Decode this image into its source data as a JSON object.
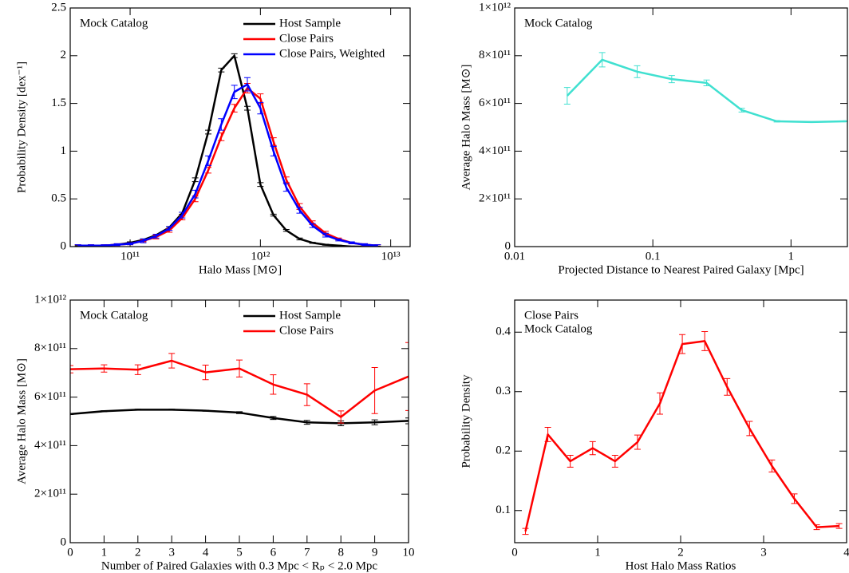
{
  "chart_data": [
    {
      "type": "line",
      "xscale": "log",
      "annotations": [
        "Mock Catalog"
      ],
      "xlabel": "Halo Mass [M⊙]",
      "ylabel": "Probability Density [dex⁻¹]",
      "x": [
        39800000000.0,
        50100000000.0,
        63100000000.0,
        79400000000.0,
        100000000000.0,
        126000000000.0,
        158000000000.0,
        200000000000.0,
        251000000000.0,
        316000000000.0,
        398000000000.0,
        501000000000.0,
        631000000000.0,
        794000000000.0,
        1000000000000.0,
        1260000000000.0,
        1580000000000.0,
        2000000000000.0,
        2510000000000.0,
        3160000000000.0,
        3980000000000.0,
        5010000000000.0,
        6310000000000.0,
        7940000000000.0
      ],
      "xlim": [
        34700000000.0,
        14100000000000.0
      ],
      "xticks": [
        {
          "value": 100000000000.0,
          "label": "10¹¹"
        },
        {
          "value": 1000000000000.0,
          "label": "10¹²"
        },
        {
          "value": 10000000000000.0,
          "label": "10¹³"
        }
      ],
      "ylim": [
        0,
        2.5
      ],
      "yticks": [
        0,
        0.5,
        1,
        1.5,
        2,
        2.5
      ],
      "legend": "upper right",
      "series": [
        {
          "name": "Host Sample",
          "color": "#000000",
          "values": [
            0.01,
            0.01,
            0.01,
            0.02,
            0.04,
            0.07,
            0.12,
            0.2,
            0.35,
            0.7,
            1.2,
            1.85,
            2.0,
            1.45,
            0.65,
            0.33,
            0.17,
            0.08,
            0.04,
            0.02,
            0.01,
            0.0,
            0.0,
            0.0
          ],
          "errors": [
            0.005,
            0.005,
            0.005,
            0.005,
            0.01,
            0.01,
            0.01,
            0.01,
            0.01,
            0.02,
            0.02,
            0.02,
            0.02,
            0.02,
            0.02,
            0.01,
            0.01,
            0.01,
            0.005,
            0.005,
            0.005,
            0.005,
            0.005,
            0.005
          ]
        },
        {
          "name": "Close Pairs",
          "color": "#ff0000",
          "values": [
            0.01,
            0.01,
            0.01,
            0.02,
            0.03,
            0.06,
            0.1,
            0.17,
            0.3,
            0.5,
            0.8,
            1.15,
            1.45,
            1.66,
            1.55,
            1.1,
            0.7,
            0.42,
            0.25,
            0.14,
            0.08,
            0.04,
            0.02,
            0.01
          ],
          "errors": [
            0.01,
            0.01,
            0.01,
            0.01,
            0.01,
            0.01,
            0.02,
            0.02,
            0.02,
            0.03,
            0.03,
            0.04,
            0.04,
            0.05,
            0.05,
            0.04,
            0.03,
            0.03,
            0.02,
            0.02,
            0.01,
            0.01,
            0.01,
            0.01
          ]
        },
        {
          "name": "Close Pairs, Weighted",
          "color": "#0000ff",
          "values": [
            0.01,
            0.01,
            0.01,
            0.02,
            0.03,
            0.06,
            0.11,
            0.19,
            0.33,
            0.55,
            0.9,
            1.28,
            1.62,
            1.7,
            1.45,
            1.0,
            0.62,
            0.38,
            0.22,
            0.12,
            0.07,
            0.04,
            0.02,
            0.01
          ],
          "errors": [
            0.01,
            0.01,
            0.01,
            0.01,
            0.01,
            0.02,
            0.02,
            0.02,
            0.03,
            0.04,
            0.05,
            0.06,
            0.07,
            0.07,
            0.06,
            0.05,
            0.04,
            0.03,
            0.02,
            0.02,
            0.01,
            0.01,
            0.01,
            0.01
          ]
        }
      ]
    },
    {
      "type": "line",
      "xscale": "log",
      "annotations": [
        "Mock Catalog"
      ],
      "xlabel": "Projected Distance to Nearest Paired Galaxy [Mpc]",
      "ylabel": "Average Halo Mass [M⊙]",
      "x": [
        0.024,
        0.043,
        0.077,
        0.137,
        0.245,
        0.44,
        0.79,
        1.41,
        2.5
      ],
      "xlim": [
        0.01,
        2.56
      ],
      "xticks": [
        0.01,
        0.1,
        1
      ],
      "ylim": [
        0,
        1000000000000.0
      ],
      "yticks": [
        0,
        {
          "value": 200000000000.0,
          "label": "2×10¹¹"
        },
        {
          "value": 400000000000.0,
          "label": "4×10¹¹"
        },
        {
          "value": 600000000000.0,
          "label": "6×10¹¹"
        },
        {
          "value": 800000000000.0,
          "label": "8×10¹¹"
        },
        {
          "value": 1000000000000.0,
          "label": "1×10¹²"
        }
      ],
      "series": [
        {
          "color": "#40e0d0",
          "values": [
            632000000000.0,
            783000000000.0,
            733000000000.0,
            702000000000.0,
            686000000000.0,
            572000000000.0,
            525000000000.0,
            522000000000.0,
            525000000000.0
          ],
          "errors": [
            35000000000.0,
            30000000000.0,
            25000000000.0,
            15000000000.0,
            12000000000.0,
            8000000000.0,
            3000000000.0,
            2000000000.0,
            2000000000.0
          ]
        }
      ]
    },
    {
      "type": "line",
      "xscale": "linear",
      "annotations": [
        "Mock Catalog"
      ],
      "xlabel": "Number of Paired Galaxies with 0.3 Mpc < Rₚ < 2.0 Mpc",
      "ylabel": "Average Halo Mass [M⊙]",
      "x": [
        0,
        1,
        2,
        3,
        4,
        5,
        6,
        7,
        8,
        9,
        10
      ],
      "xlim": [
        0,
        10
      ],
      "xticks": [
        0,
        1,
        2,
        3,
        4,
        5,
        6,
        7,
        8,
        9,
        10
      ],
      "ylim": [
        0,
        1000000000000.0
      ],
      "yticks": [
        0,
        {
          "value": 200000000000.0,
          "label": "2×10¹¹"
        },
        {
          "value": 400000000000.0,
          "label": "4×10¹¹"
        },
        {
          "value": 600000000000.0,
          "label": "6×10¹¹"
        },
        {
          "value": 800000000000.0,
          "label": "8×10¹¹"
        },
        {
          "value": 1000000000000.0,
          "label": "1×10¹²"
        }
      ],
      "legend": "upper right",
      "series": [
        {
          "name": "Host Sample",
          "color": "#000000",
          "values": [
            530000000000.0,
            542000000000.0,
            548000000000.0,
            548000000000.0,
            544000000000.0,
            536000000000.0,
            514000000000.0,
            496000000000.0,
            492000000000.0,
            496000000000.0,
            502000000000.0
          ],
          "errors": [
            2000000000.0,
            2000000000.0,
            2000000000.0,
            2000000000.0,
            2000000000.0,
            4000000000.0,
            6000000000.0,
            8000000000.0,
            10000000000.0,
            10000000000.0,
            12000000000.0
          ]
        },
        {
          "name": "Close Pairs",
          "color": "#ff0000",
          "values": [
            715000000000.0,
            718000000000.0,
            713000000000.0,
            750000000000.0,
            702000000000.0,
            718000000000.0,
            652000000000.0,
            610000000000.0,
            518000000000.0,
            627000000000.0,
            685000000000.0
          ],
          "errors": [
            15000000000.0,
            15000000000.0,
            20000000000.0,
            30000000000.0,
            30000000000.0,
            35000000000.0,
            40000000000.0,
            45000000000.0,
            25000000000.0,
            95000000000.0,
            140000000000.0
          ]
        }
      ]
    },
    {
      "type": "line",
      "xscale": "linear",
      "annotations": [
        "Close Pairs",
        "Mock Catalog"
      ],
      "xlabel": "Host Halo Mass Ratios",
      "ylabel": "Probability Density",
      "x": [
        0.13,
        0.4,
        0.67,
        0.94,
        1.21,
        1.48,
        1.75,
        2.02,
        2.29,
        2.56,
        2.83,
        3.1,
        3.37,
        3.64,
        3.91
      ],
      "xlim": [
        0,
        4
      ],
      "xticks": [
        0,
        1,
        2,
        3,
        4
      ],
      "ylim": [
        0.046,
        0.454
      ],
      "yticks": [
        0.1,
        0.2,
        0.3,
        0.4
      ],
      "series": [
        {
          "color": "#ff0000",
          "values": [
            0.065,
            0.228,
            0.183,
            0.205,
            0.183,
            0.215,
            0.28,
            0.38,
            0.385,
            0.308,
            0.238,
            0.175,
            0.12,
            0.072,
            0.074
          ],
          "errors": [
            0.005,
            0.012,
            0.01,
            0.011,
            0.01,
            0.012,
            0.018,
            0.016,
            0.016,
            0.014,
            0.012,
            0.01,
            0.008,
            0.004,
            0.004
          ]
        }
      ]
    }
  ]
}
